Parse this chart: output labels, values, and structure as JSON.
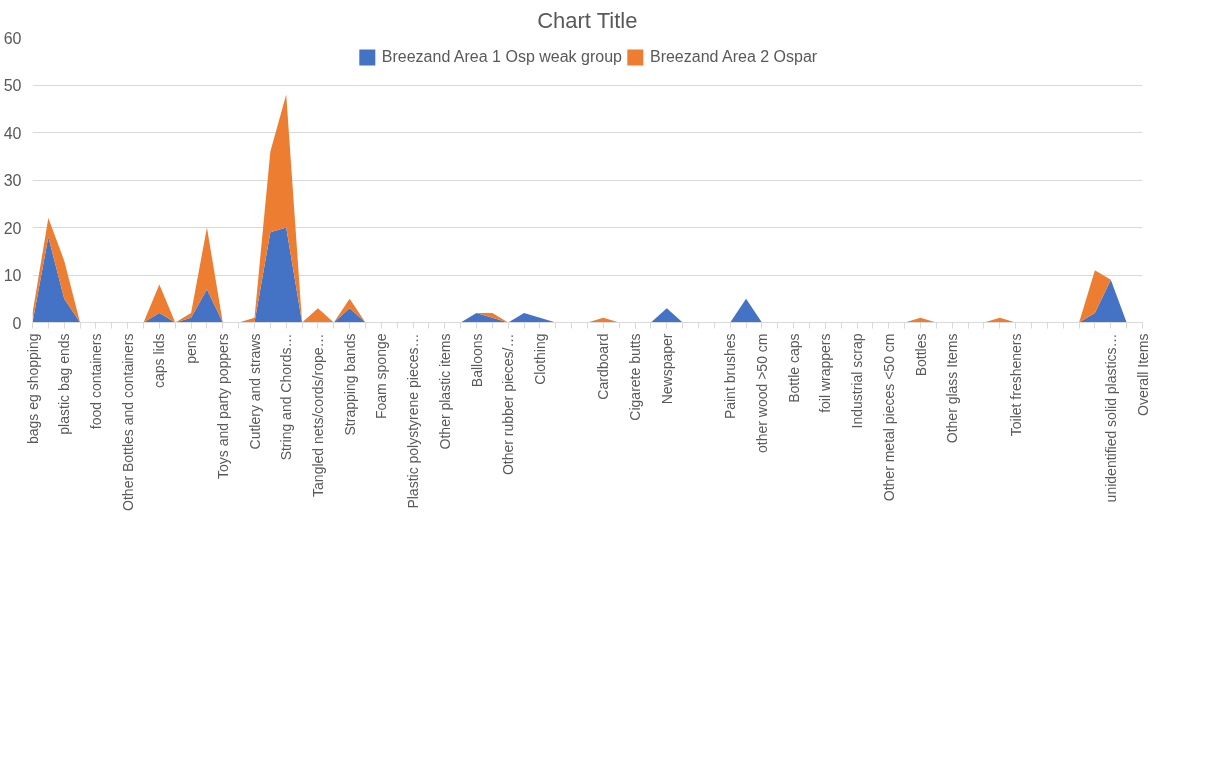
{
  "chart_data": {
    "type": "area",
    "title": "Chart Title",
    "stacked": true,
    "categories": [
      "bags eg shopping",
      null,
      "plastic bag ends",
      null,
      "food containers",
      null,
      "Other Bottles and containers",
      null,
      "caps lids",
      null,
      "pens",
      null,
      "Toys and party poppers",
      null,
      "Cutlery and straws",
      null,
      "String and Chords…",
      null,
      "Tangled nets/cords/rope…",
      null,
      "Strapping bands",
      null,
      "Foam sponge",
      null,
      "Plastic polystyrene pieces…",
      null,
      "Other plastic items",
      null,
      "Balloons",
      null,
      "Other rubber pieces/…",
      null,
      "Clothing",
      null,
      null,
      null,
      "Cardboard",
      null,
      "Cigarete butts",
      null,
      "Newspaper",
      null,
      null,
      null,
      "Paint brushes",
      null,
      "other wood >50 cm",
      null,
      "Bottle caps",
      null,
      "foil wrappers",
      null,
      "Industrial scrap",
      null,
      "Other metal pieces <50 cm",
      null,
      "Bottles",
      null,
      "Other glass Items",
      null,
      null,
      null,
      "Toilet fresheners",
      null,
      null,
      null,
      null,
      null,
      "unidentified solid plastics…",
      null,
      "Overall Items"
    ],
    "series": [
      {
        "name": "Breezand Area 1 Osp weak group",
        "color": "#4472c4",
        "values": [
          0,
          18,
          5,
          0,
          0,
          0,
          0,
          0,
          2,
          0,
          1,
          7,
          0,
          0,
          0,
          19,
          20,
          0,
          0,
          0,
          3,
          0,
          0,
          0,
          0,
          0,
          0,
          0,
          2,
          1,
          0,
          2,
          1,
          0,
          0,
          0,
          0,
          0,
          0,
          0,
          3,
          0,
          0,
          0,
          0,
          5,
          0,
          0,
          0,
          0,
          0,
          0,
          0,
          0,
          0,
          0,
          0,
          0,
          0,
          0,
          0,
          0,
          0,
          0,
          0,
          0,
          0,
          2,
          9,
          0,
          0
        ]
      },
      {
        "name": "Breezand Area 2 Ospar",
        "color": "#ed7d31",
        "values": [
          2,
          4,
          8,
          0,
          0,
          0,
          0,
          0,
          6,
          0,
          1,
          13,
          0,
          0,
          1,
          17,
          28,
          0,
          3,
          0,
          2,
          0,
          0,
          0,
          0,
          0,
          0,
          0,
          0,
          1,
          0,
          0,
          0,
          0,
          0,
          0,
          1,
          0,
          0,
          0,
          0,
          0,
          0,
          0,
          0,
          0,
          0,
          0,
          0,
          0,
          0,
          0,
          0,
          0,
          0,
          0,
          1,
          0,
          0,
          0,
          0,
          1,
          0,
          0,
          0,
          0,
          0,
          9,
          0,
          0,
          0
        ]
      }
    ],
    "ylim": [
      0,
      60
    ],
    "yticks": [
      0,
      10,
      20,
      30,
      40,
      50,
      60
    ],
    "grid": "y",
    "legend": "top"
  }
}
